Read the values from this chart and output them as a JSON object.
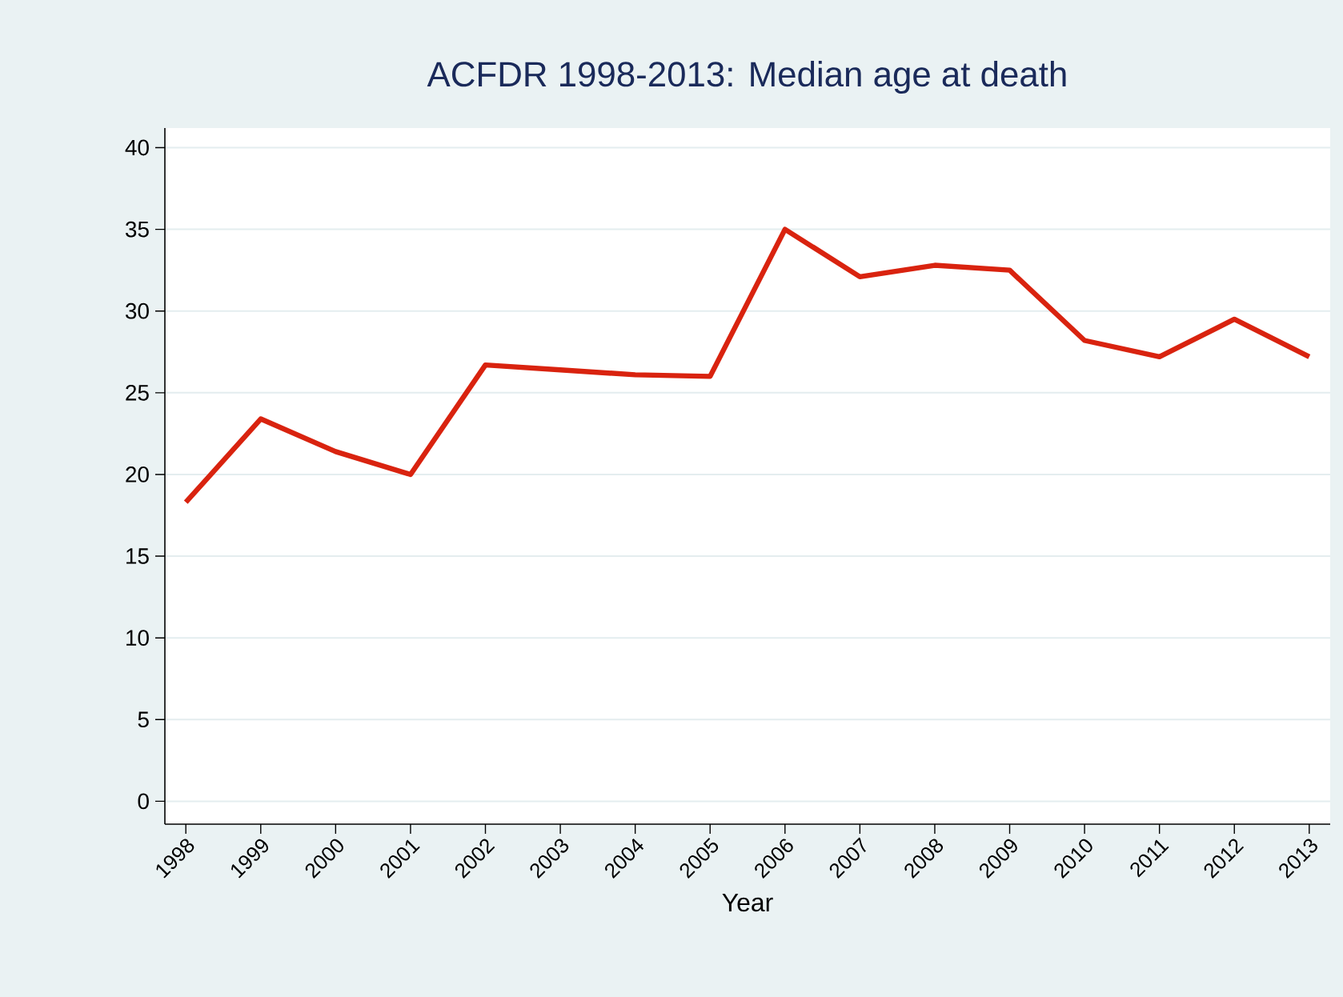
{
  "chart_data": {
    "type": "line",
    "title": "ACFDR 1998-2013: Median age at death",
    "xlabel": "Year",
    "categories": [
      "1998",
      "1999",
      "2000",
      "2001",
      "2002",
      "2003",
      "2004",
      "2005",
      "2006",
      "2007",
      "2008",
      "2009",
      "2010",
      "2011",
      "2012",
      "2013"
    ],
    "series": [
      {
        "color": "#d9230f",
        "values": [
          18.3,
          23.4,
          21.4,
          20.0,
          26.7,
          26.4,
          26.1,
          26.0,
          35.0,
          32.1,
          32.8,
          32.5,
          28.2,
          27.2,
          29.5,
          27.2
        ]
      }
    ],
    "ylim": [
      -1.4,
      41.2
    ],
    "yticks": [
      0,
      5,
      10,
      15,
      20,
      25,
      30,
      35,
      40
    ],
    "grid": "y",
    "marker": "none",
    "line_style": "solid"
  }
}
